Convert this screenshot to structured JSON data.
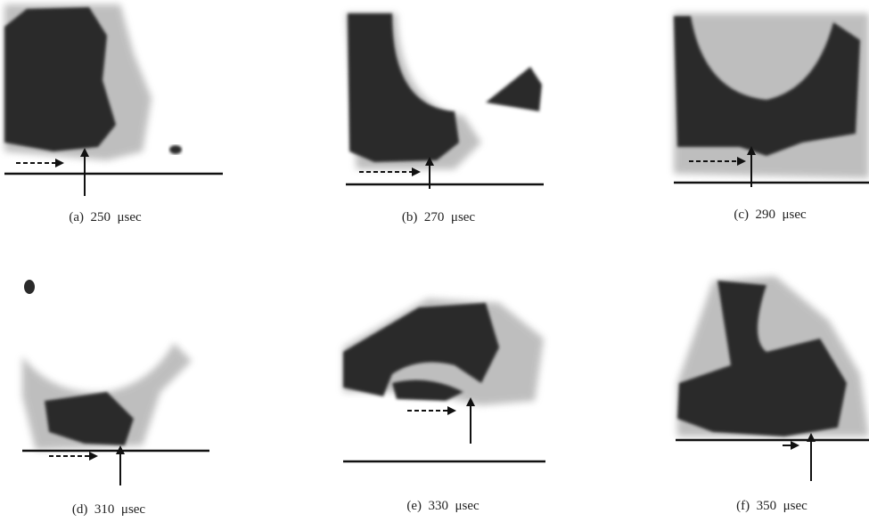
{
  "figure": {
    "panels": [
      {
        "caption": "(a)  250  μsec"
      },
      {
        "caption": "(b)  270  μsec"
      },
      {
        "caption": "(c)  290  μsec"
      },
      {
        "caption": "(d)  310  μsec"
      },
      {
        "caption": "(e)  330  μsec"
      },
      {
        "caption": "(f)  350  μsec"
      }
    ]
  }
}
